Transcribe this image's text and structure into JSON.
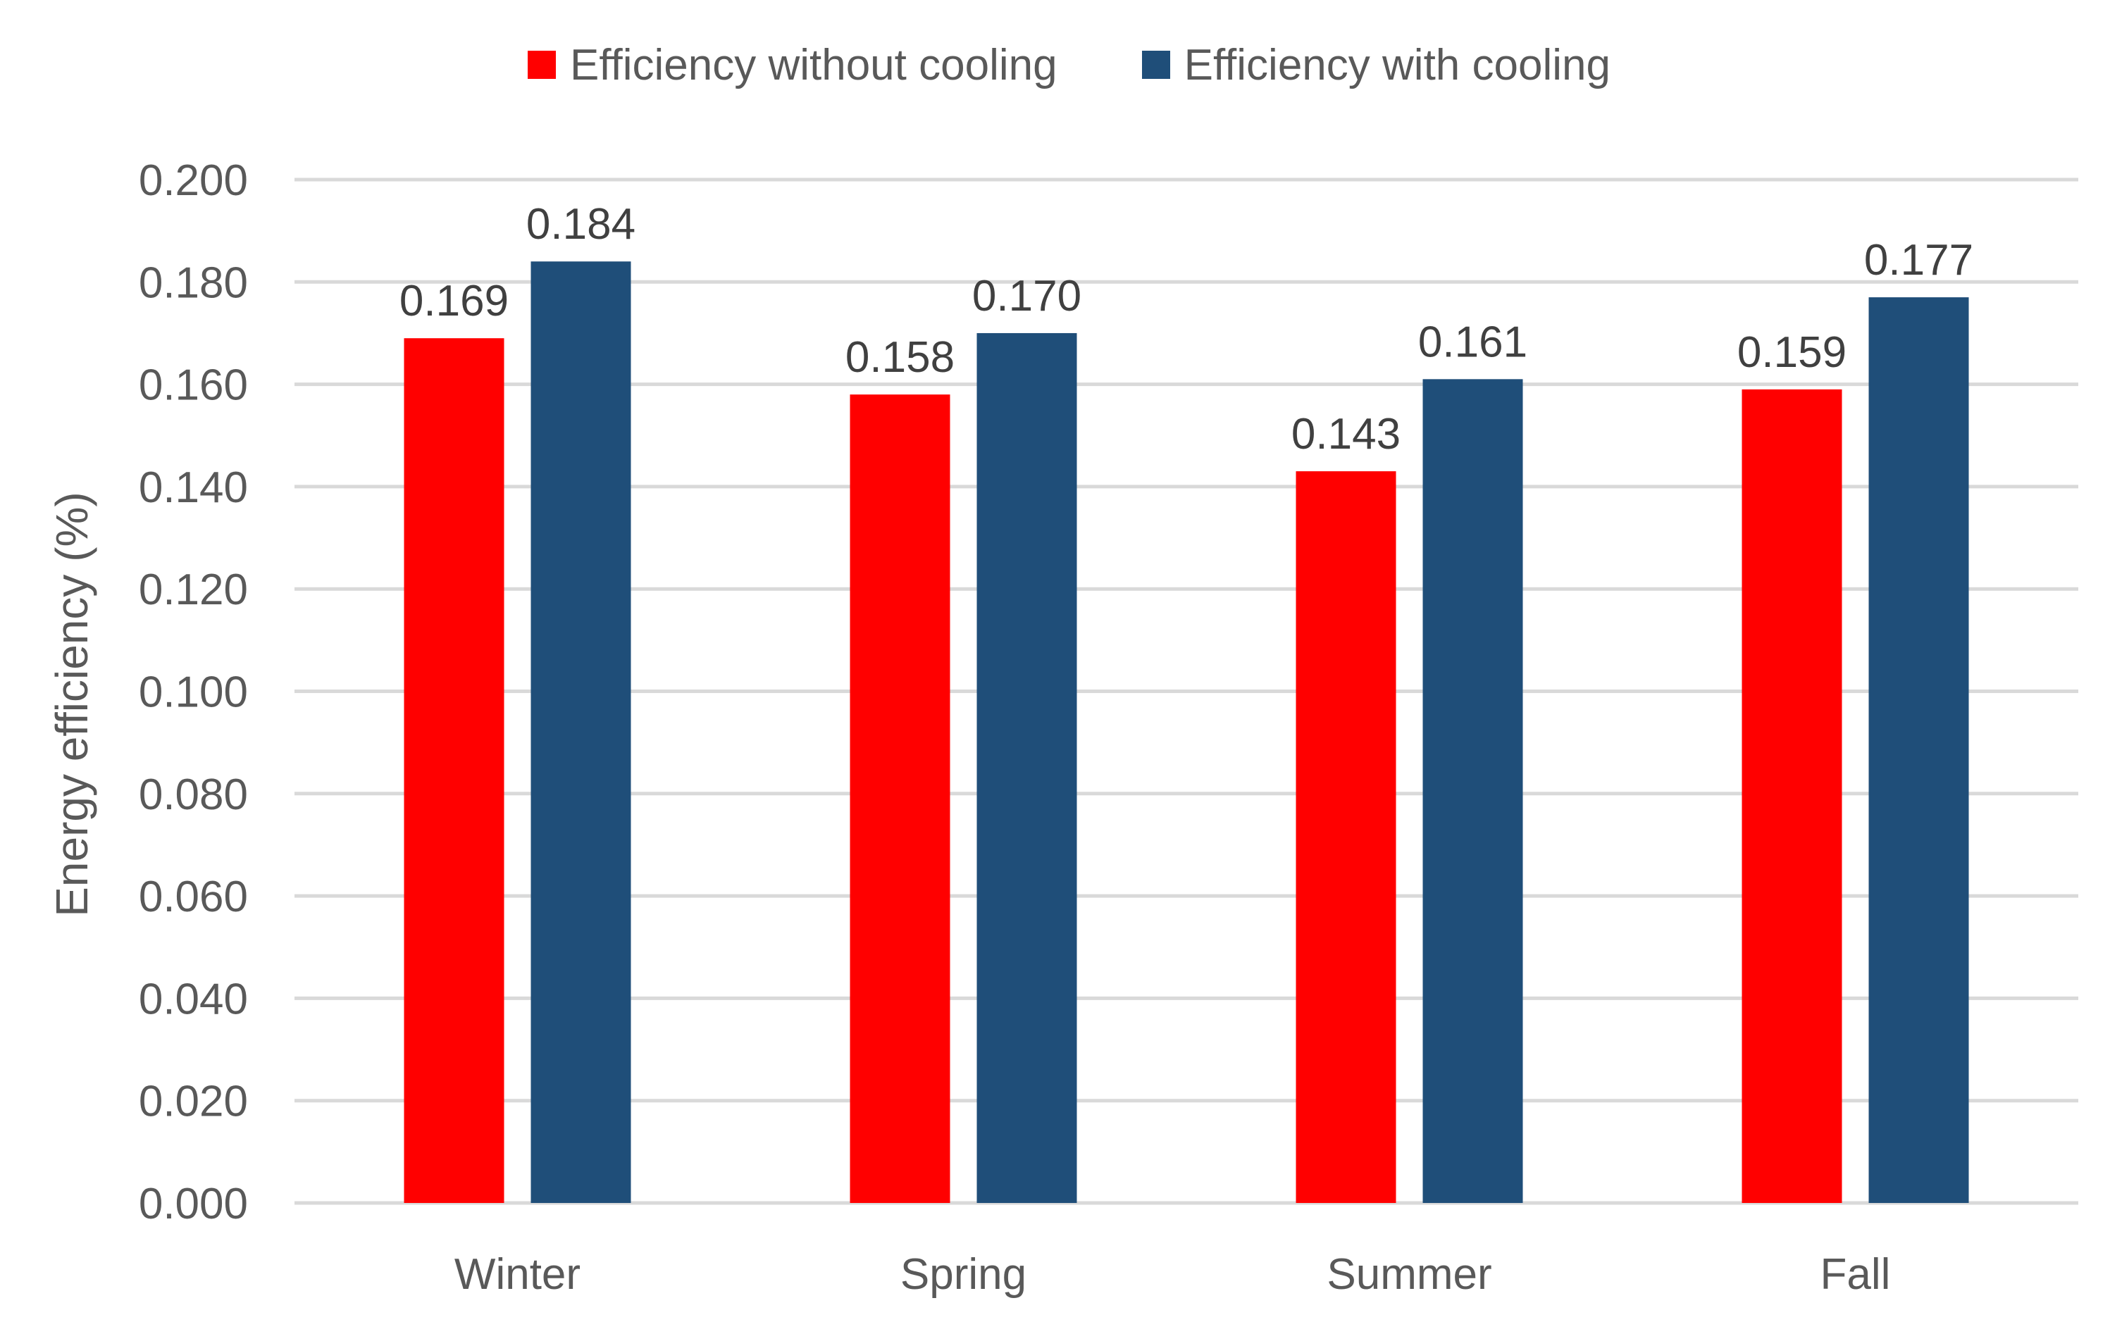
{
  "chart_data": {
    "type": "bar",
    "title": "",
    "xlabel": "",
    "ylabel": "Energy efficiency (%)",
    "ylim": [
      0,
      0.2
    ],
    "ytick_step": 0.02,
    "ytick_labels": [
      "0.000",
      "0.020",
      "0.040",
      "0.060",
      "0.080",
      "0.100",
      "0.120",
      "0.140",
      "0.160",
      "0.180",
      "0.200"
    ],
    "grid": true,
    "legend_position": "top-center",
    "categories": [
      "Winter",
      "Spring",
      "Summer",
      "Fall"
    ],
    "series": [
      {
        "name": "Efficiency without cooling",
        "color": "#FF0000",
        "values": [
          0.169,
          0.158,
          0.143,
          0.159
        ],
        "labels": [
          "0.169",
          "0.158",
          "0.143",
          "0.159"
        ]
      },
      {
        "name": "Efficiency with cooling",
        "color": "#1F4E79",
        "values": [
          0.184,
          0.17,
          0.161,
          0.177
        ],
        "labels": [
          "0.184",
          "0.170",
          "0.161",
          "0.177"
        ]
      }
    ]
  }
}
